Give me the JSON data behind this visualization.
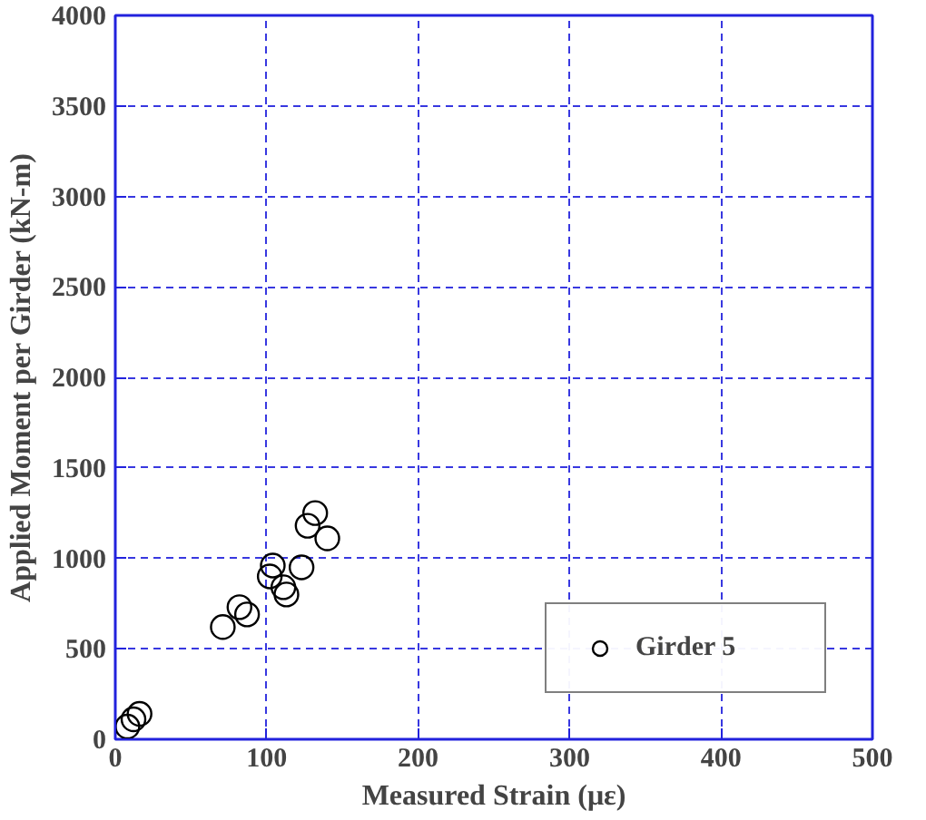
{
  "chart_data": {
    "type": "scatter",
    "xlabel": "Measured Strain (με)",
    "ylabel": "Applied Moment per Girder (kN-m)",
    "xlim": [
      0,
      500
    ],
    "xticks": [
      0,
      100,
      200,
      300,
      400,
      500
    ],
    "ylim": [
      0,
      4000
    ],
    "yticks": [
      0,
      500,
      1000,
      1500,
      2000,
      2500,
      3000,
      3500,
      4000
    ],
    "grid": true,
    "legend": "bottom right",
    "marker": "circle",
    "series": [
      {
        "name": "Girder 5",
        "color": "#000000",
        "x": [
          8,
          12,
          16,
          71,
          82,
          87,
          102,
          104,
          111,
          113,
          123,
          127,
          132,
          140
        ],
        "values": [
          70,
          110,
          140,
          620,
          730,
          690,
          900,
          960,
          840,
          800,
          950,
          1180,
          1250,
          1110
        ]
      }
    ]
  }
}
